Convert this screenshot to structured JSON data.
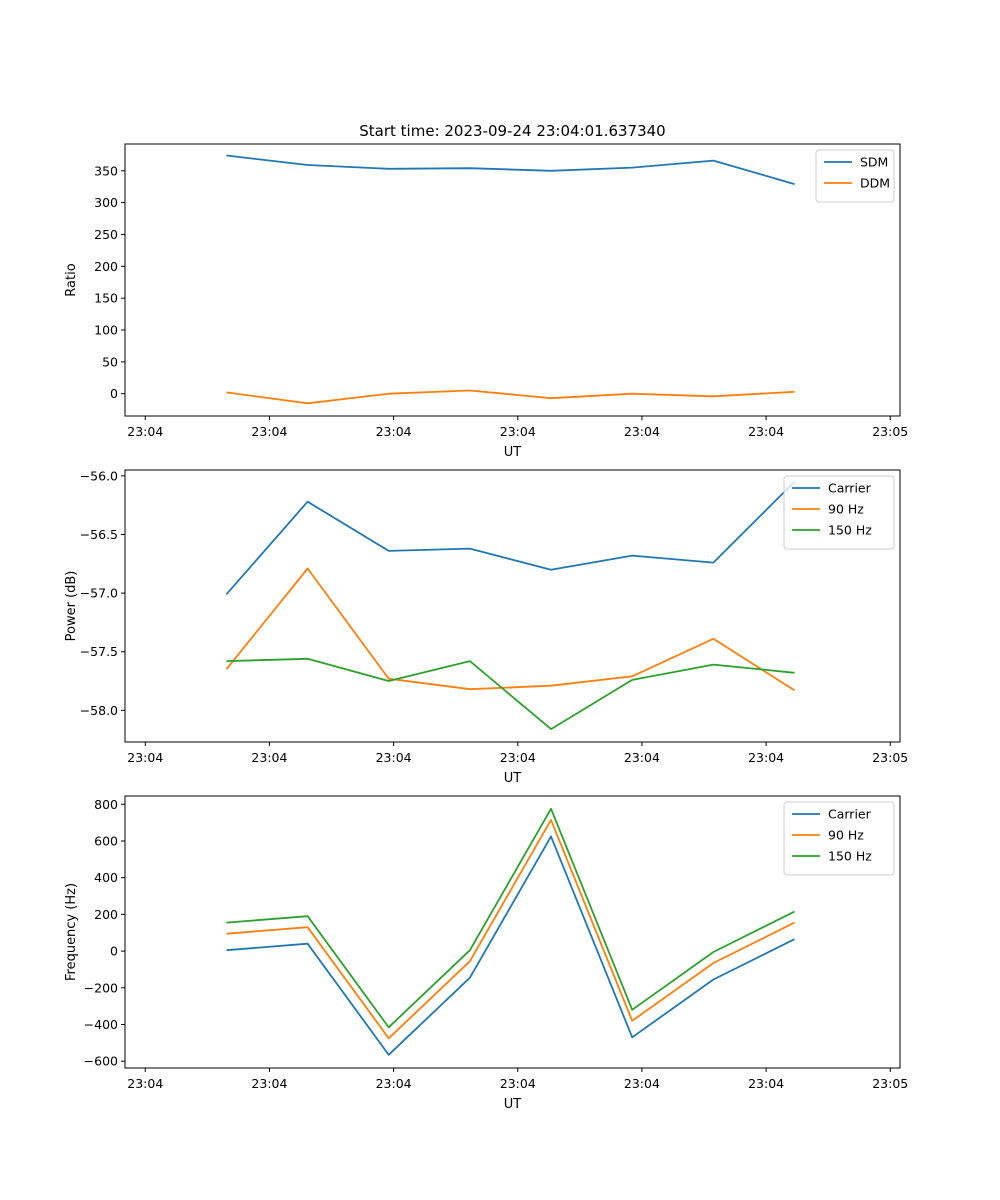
{
  "figure": {
    "title": "Start time: 2023-09-24 23:04:01.637340"
  },
  "colors": {
    "blue": "#1f77b4",
    "orange": "#ff7f0e",
    "green": "#2ca02c"
  },
  "chart_data": [
    {
      "type": "line",
      "title": "Start time: 2023-09-24 23:04:01.637340",
      "xlabel": "UT",
      "ylabel": "Ratio",
      "x": [
        1,
        2,
        3,
        4,
        5,
        6,
        7,
        8
      ],
      "xlim": [
        -0.25,
        9.3
      ],
      "xticks": [
        0,
        1.53,
        3.06,
        4.59,
        6.12,
        7.65,
        9.18
      ],
      "xtick_labels": [
        "23:04",
        "23:04",
        "23:04",
        "23:04",
        "23:04",
        "23:04",
        "23:05"
      ],
      "ylim": [
        -35,
        392
      ],
      "yticks": [
        0,
        50,
        100,
        150,
        200,
        250,
        300,
        350
      ],
      "ytick_labels": [
        "0",
        "50",
        "100",
        "150",
        "200",
        "250",
        "300",
        "350"
      ],
      "legend": "top-right",
      "series": [
        {
          "name": "SDM",
          "color": "#1f77b4",
          "values": [
            374,
            359,
            353,
            354,
            350,
            355,
            366,
            329
          ]
        },
        {
          "name": "DDM",
          "color": "#ff7f0e",
          "values": [
            2,
            -15,
            0,
            5,
            -7,
            0,
            -4,
            3
          ]
        }
      ]
    },
    {
      "type": "line",
      "title": "",
      "xlabel": "UT",
      "ylabel": "Power (dB)",
      "x": [
        1,
        2,
        3,
        4,
        5,
        6,
        7,
        8
      ],
      "xlim": [
        -0.25,
        9.3
      ],
      "xticks": [
        0,
        1.53,
        3.06,
        4.59,
        6.12,
        7.65,
        9.18
      ],
      "xtick_labels": [
        "23:04",
        "23:04",
        "23:04",
        "23:04",
        "23:04",
        "23:04",
        "23:05"
      ],
      "ylim": [
        -58.27,
        -55.95
      ],
      "yticks": [
        -56.0,
        -56.5,
        -57.0,
        -57.5,
        -58.0
      ],
      "ytick_labels": [
        "−56.0",
        "−56.5",
        "−57.0",
        "−57.5",
        "−58.0"
      ],
      "legend": "top-right",
      "series": [
        {
          "name": "Carrier",
          "color": "#1f77b4",
          "values": [
            -57.01,
            -56.22,
            -56.64,
            -56.62,
            -56.8,
            -56.68,
            -56.74,
            -56.05
          ]
        },
        {
          "name": "90 Hz",
          "color": "#ff7f0e",
          "values": [
            -57.65,
            -56.79,
            -57.73,
            -57.82,
            -57.79,
            -57.71,
            -57.39,
            -57.83
          ]
        },
        {
          "name": "150 Hz",
          "color": "#2ca02c",
          "values": [
            -57.58,
            -57.56,
            -57.75,
            -57.58,
            -58.16,
            -57.74,
            -57.61,
            -57.68
          ]
        }
      ]
    },
    {
      "type": "line",
      "title": "",
      "xlabel": "UT",
      "ylabel": "Frequency (Hz)",
      "x": [
        1,
        2,
        3,
        4,
        5,
        6,
        7,
        8
      ],
      "xlim": [
        -0.25,
        9.3
      ],
      "xticks": [
        0,
        1.53,
        3.06,
        4.59,
        6.12,
        7.65,
        9.18
      ],
      "xtick_labels": [
        "23:04",
        "23:04",
        "23:04",
        "23:04",
        "23:04",
        "23:04",
        "23:05"
      ],
      "ylim": [
        -637,
        845
      ],
      "yticks": [
        -600,
        -400,
        -200,
        0,
        200,
        400,
        600,
        800
      ],
      "ytick_labels": [
        "−600",
        "−400",
        "−200",
        "0",
        "200",
        "400",
        "600",
        "800"
      ],
      "legend": "top-right",
      "series": [
        {
          "name": "Carrier",
          "color": "#1f77b4",
          "values": [
            5,
            40,
            -565,
            -145,
            625,
            -470,
            -155,
            65
          ]
        },
        {
          "name": "90 Hz",
          "color": "#ff7f0e",
          "values": [
            95,
            130,
            -475,
            -55,
            715,
            -380,
            -65,
            155
          ]
        },
        {
          "name": "150 Hz",
          "color": "#2ca02c",
          "values": [
            155,
            190,
            -415,
            5,
            775,
            -320,
            -5,
            215
          ]
        }
      ]
    }
  ]
}
